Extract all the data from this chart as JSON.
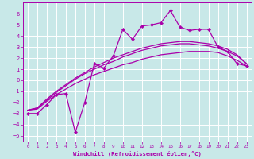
{
  "background_color": "#c8e8e8",
  "grid_color": "#ffffff",
  "line_color": "#aa00aa",
  "xlabel": "Windchill (Refroidissement éolien,°C)",
  "xlim": [
    -0.5,
    23.5
  ],
  "ylim": [
    -5.5,
    7.0
  ],
  "xticks": [
    0,
    1,
    2,
    3,
    4,
    5,
    6,
    7,
    8,
    9,
    10,
    11,
    12,
    13,
    14,
    15,
    16,
    17,
    18,
    19,
    20,
    21,
    22,
    23
  ],
  "yticks": [
    -5,
    -4,
    -3,
    -2,
    -1,
    0,
    1,
    2,
    3,
    4,
    5,
    6
  ],
  "series_noisy": [
    -3.0,
    -3.0,
    -2.2,
    -1.3,
    -1.2,
    -4.7,
    -2.0,
    1.5,
    1.1,
    2.2,
    4.6,
    3.7,
    4.9,
    5.0,
    5.2,
    6.3,
    4.8,
    4.5,
    4.6,
    4.6,
    3.0,
    2.6,
    1.5,
    1.3
  ],
  "series_smooth1": [
    -2.7,
    -2.6,
    -1.9,
    -1.3,
    -0.8,
    -0.3,
    0.1,
    0.5,
    0.8,
    1.1,
    1.4,
    1.6,
    1.9,
    2.1,
    2.3,
    2.4,
    2.5,
    2.6,
    2.6,
    2.6,
    2.5,
    2.2,
    1.8,
    1.3
  ],
  "series_smooth2": [
    -2.7,
    -2.5,
    -1.8,
    -1.1,
    -0.5,
    0.1,
    0.6,
    1.0,
    1.4,
    1.7,
    2.1,
    2.4,
    2.7,
    2.9,
    3.1,
    3.2,
    3.3,
    3.3,
    3.2,
    3.1,
    2.9,
    2.6,
    2.2,
    1.5
  ],
  "series_smooth3": [
    -2.7,
    -2.5,
    -1.7,
    -1.0,
    -0.4,
    0.2,
    0.7,
    1.2,
    1.6,
    2.0,
    2.3,
    2.6,
    2.9,
    3.1,
    3.3,
    3.4,
    3.5,
    3.5,
    3.4,
    3.3,
    3.1,
    2.8,
    2.3,
    1.5
  ]
}
